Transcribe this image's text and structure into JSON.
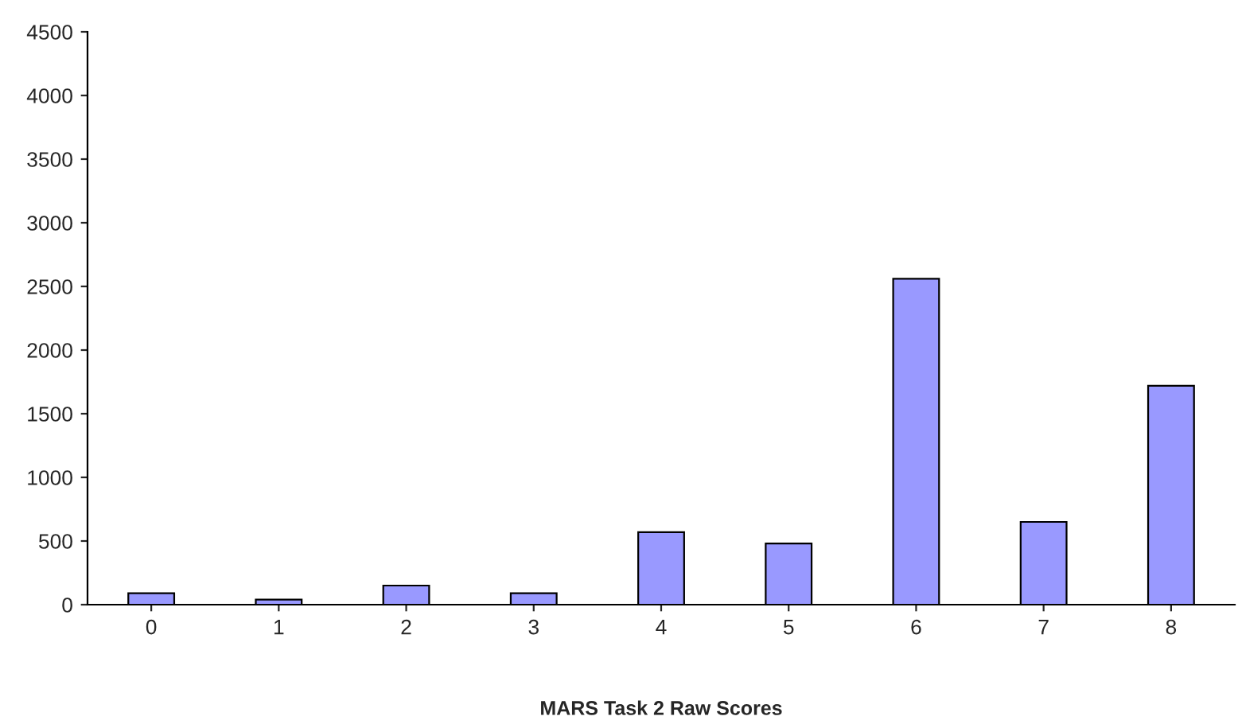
{
  "chart_data": {
    "type": "bar",
    "xlabel": "MARS Task 2 Raw Scores",
    "categories": [
      "0",
      "1",
      "2",
      "3",
      "4",
      "5",
      "6",
      "7",
      "8"
    ],
    "values": [
      90,
      40,
      150,
      90,
      570,
      480,
      2560,
      650,
      1720
    ],
    "color": "#9999ff",
    "ylim": [
      0,
      4500
    ],
    "yticks": [
      0,
      500,
      1000,
      1500,
      2000,
      2500,
      3000,
      3500,
      4000,
      4500
    ],
    "grid": false,
    "legend": false
  }
}
